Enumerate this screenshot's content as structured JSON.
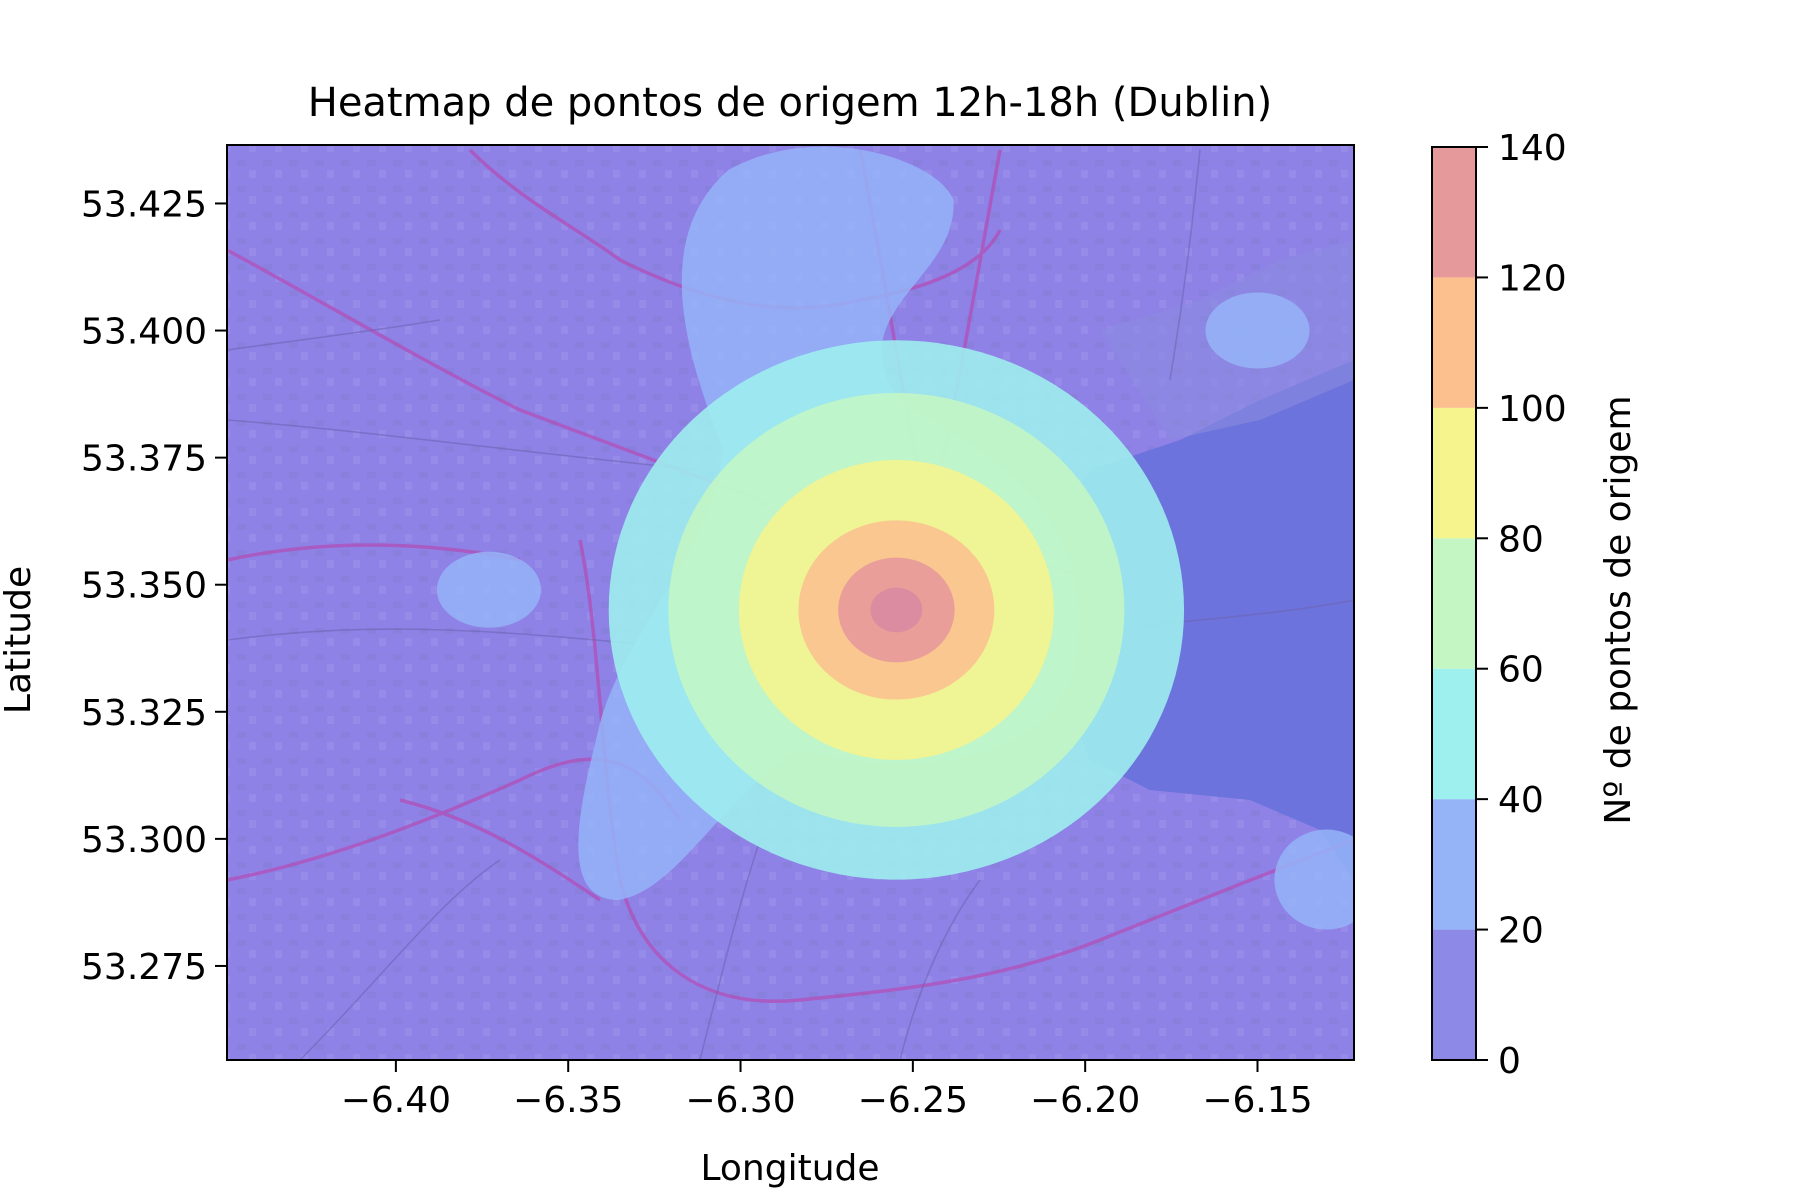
{
  "chart_data": {
    "type": "heatmap",
    "title": "Heatmap de pontos de origem 12h-18h (Dublin)",
    "xlabel": "Longitude",
    "ylabel": "Latitude",
    "xlim": [
      -6.449,
      -6.122
    ],
    "ylim": [
      53.2565,
      53.4365
    ],
    "x_ticks": [
      -6.4,
      -6.35,
      -6.3,
      -6.25,
      -6.2,
      -6.15
    ],
    "x_tick_labels": [
      "−6.40",
      "−6.35",
      "−6.30",
      "−6.25",
      "−6.20",
      "−6.15"
    ],
    "y_ticks": [
      53.275,
      53.3,
      53.325,
      53.35,
      53.375,
      53.4,
      53.425
    ],
    "y_tick_labels": [
      "53.275",
      "53.300",
      "53.325",
      "53.350",
      "53.375",
      "53.400",
      "53.425"
    ],
    "colorbar": {
      "label": "Nº de pontos de origem",
      "levels": [
        0,
        20,
        40,
        60,
        80,
        100,
        120,
        140
      ],
      "level_labels": [
        "0",
        "20",
        "40",
        "60",
        "80",
        "100",
        "120",
        "140"
      ],
      "colors": [
        "#8c8ae6",
        "#95b4f8",
        "#9ef0ef",
        "#c4f6c4",
        "#f6f48c",
        "#fbc08e",
        "#e6999b"
      ]
    },
    "background": "street map of Dublin (OpenStreetMap tiles)",
    "map_base_color": "#8f82e6",
    "sea_color": "#6d73dc",
    "road_color": "#b04fb8",
    "hotspots": [
      {
        "lon": -6.26,
        "lat": 53.347,
        "level": 140
      },
      {
        "lon": -6.15,
        "lat": 53.4,
        "level": 20
      },
      {
        "lon": -6.373,
        "lat": 53.349,
        "level": 20
      },
      {
        "lon": -6.13,
        "lat": 53.292,
        "level": 20
      }
    ]
  }
}
